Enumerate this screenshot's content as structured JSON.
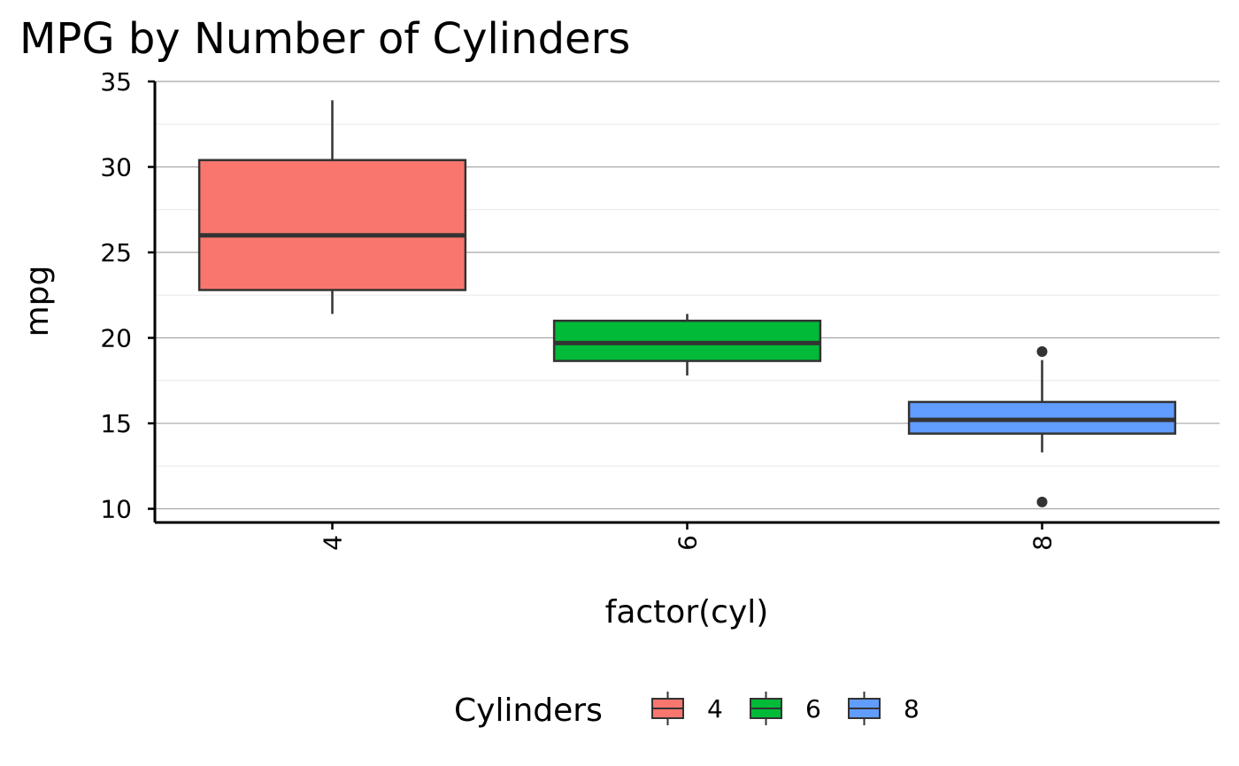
{
  "chart_data": {
    "type": "box",
    "title": "MPG by Number of Cylinders",
    "xlabel": "factor(cyl)",
    "ylabel": "mpg",
    "categories": [
      "4",
      "6",
      "8"
    ],
    "ylim": [
      9.2,
      35
    ],
    "yticks": [
      10,
      15,
      20,
      25,
      30,
      35
    ],
    "grid": true,
    "legend": {
      "title": "Cylinders",
      "placement": "bottom",
      "entries": [
        "4",
        "6",
        "8"
      ]
    },
    "colors": [
      "#F8766D",
      "#00BA38",
      "#619CFF"
    ],
    "boxes": [
      {
        "name": "4",
        "min": 21.4,
        "q1": 22.8,
        "median": 26.0,
        "q3": 30.4,
        "max": 33.9,
        "outliers": []
      },
      {
        "name": "6",
        "min": 17.8,
        "q1": 18.65,
        "median": 19.7,
        "q3": 21.0,
        "max": 21.4,
        "outliers": []
      },
      {
        "name": "8",
        "min": 13.3,
        "q1": 14.4,
        "median": 15.2,
        "q3": 16.25,
        "max": 18.7,
        "outliers": [
          10.4,
          19.2
        ]
      }
    ]
  }
}
